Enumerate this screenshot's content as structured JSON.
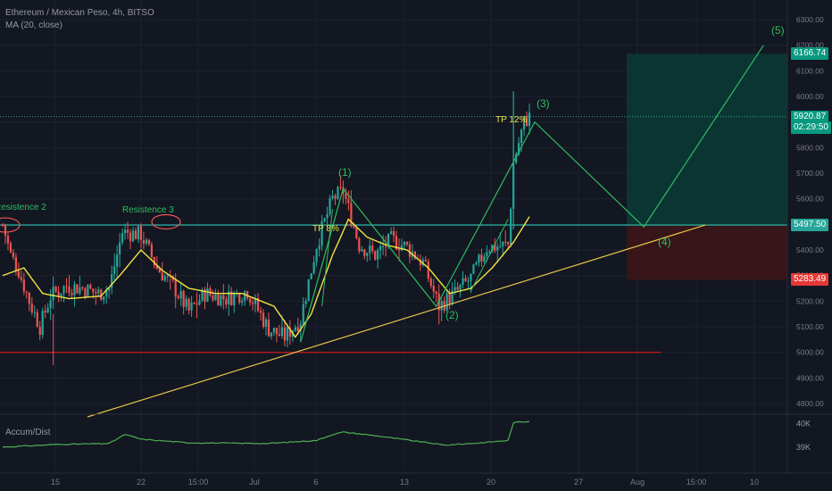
{
  "header": {
    "symbol_line": "Ethereum / Mexican Peso, 4h, BITSO",
    "indicator_line": "MA (20, close)"
  },
  "colors": {
    "background": "#131722",
    "up": "#26a69a",
    "down": "#ef5350",
    "ma": "#f0e442",
    "trend": "#e6c34a",
    "wave": "#2ebd5f",
    "level": "#26a69a",
    "support": "#b71c1c",
    "profit_zone": "#0b3b35",
    "loss_zone": "#3c1518",
    "accum": "#4caf50"
  },
  "price_tags": [
    {
      "name": "target-price-tag",
      "label": "6166.74",
      "value": 6166.74,
      "color": "#089981"
    },
    {
      "name": "last-price-tag",
      "label": "5920.87",
      "value": 5920.87,
      "color": "#089981"
    },
    {
      "name": "countdown-tag",
      "label": "02:29:50",
      "value": 5877,
      "color": "#089981"
    },
    {
      "name": "entry-price-tag",
      "label": "5497.50",
      "value": 5497.5,
      "color": "#26a69a"
    },
    {
      "name": "stop-price-tag",
      "label": "5283.49",
      "value": 5283.49,
      "color": "#e53935"
    }
  ],
  "annotations": {
    "resistance_2": "Resistence 2",
    "resistance_3": "Resistence 3",
    "tp_8": "TP 8%",
    "tp_12": "TP 12%",
    "wave_1": "(1)",
    "wave_2": "(2)",
    "wave_3": "(3)",
    "wave_4": "(4)",
    "wave_5": "(5)"
  },
  "accum_dist": {
    "label": "Accum/Dist",
    "ticks": [
      {
        "label": "40K",
        "value": 40000
      },
      {
        "label": "39K",
        "value": 39000
      }
    ]
  },
  "chart_data": {
    "type": "candlestick",
    "ylim": [
      4700,
      6350
    ],
    "y_ticks": [
      4800,
      4900,
      5000,
      5100,
      5200,
      5300,
      5400,
      5500,
      5600,
      5700,
      5800,
      5900,
      6000,
      6100,
      6200,
      6300
    ],
    "x_ticks": [
      "15",
      "22",
      "15:00",
      "Jul",
      "6",
      "13",
      "20",
      "27",
      "Aug",
      "15:00",
      "10"
    ],
    "series_anchors": [
      {
        "t": 0,
        "v": 5500
      },
      {
        "t": 3,
        "v": 5380
      },
      {
        "t": 6,
        "v": 5320
      },
      {
        "t": 10,
        "v": 5200
      },
      {
        "t": 14,
        "v": 5100
      },
      {
        "t": 18,
        "v": 5220
      },
      {
        "t": 24,
        "v": 5260
      },
      {
        "t": 30,
        "v": 5250
      },
      {
        "t": 36,
        "v": 5230
      },
      {
        "t": 40,
        "v": 5250
      },
      {
        "t": 45,
        "v": 5470
      },
      {
        "t": 52,
        "v": 5460
      },
      {
        "t": 58,
        "v": 5330
      },
      {
        "t": 64,
        "v": 5260
      },
      {
        "t": 70,
        "v": 5160
      },
      {
        "t": 76,
        "v": 5230
      },
      {
        "t": 84,
        "v": 5210
      },
      {
        "t": 92,
        "v": 5240
      },
      {
        "t": 100,
        "v": 5090
      },
      {
        "t": 106,
        "v": 5060
      },
      {
        "t": 112,
        "v": 5130
      },
      {
        "t": 118,
        "v": 5420
      },
      {
        "t": 124,
        "v": 5600
      },
      {
        "t": 128,
        "v": 5630
      },
      {
        "t": 134,
        "v": 5420
      },
      {
        "t": 140,
        "v": 5380
      },
      {
        "t": 146,
        "v": 5440
      },
      {
        "t": 152,
        "v": 5410
      },
      {
        "t": 158,
        "v": 5350
      },
      {
        "t": 164,
        "v": 5180
      },
      {
        "t": 170,
        "v": 5230
      },
      {
        "t": 176,
        "v": 5290
      },
      {
        "t": 182,
        "v": 5410
      },
      {
        "t": 190,
        "v": 5420
      },
      {
        "t": 192,
        "v": 5740
      },
      {
        "t": 196,
        "v": 5900
      },
      {
        "t": 198,
        "v": 5920
      }
    ],
    "candle_count": 199,
    "ma_anchors": [
      {
        "t": 0,
        "v": 5300
      },
      {
        "t": 8,
        "v": 5330
      },
      {
        "t": 15,
        "v": 5230
      },
      {
        "t": 25,
        "v": 5210
      },
      {
        "t": 37,
        "v": 5220
      },
      {
        "t": 44,
        "v": 5300
      },
      {
        "t": 52,
        "v": 5400
      },
      {
        "t": 60,
        "v": 5320
      },
      {
        "t": 70,
        "v": 5250
      },
      {
        "t": 80,
        "v": 5230
      },
      {
        "t": 90,
        "v": 5230
      },
      {
        "t": 102,
        "v": 5180
      },
      {
        "t": 110,
        "v": 5060
      },
      {
        "t": 116,
        "v": 5150
      },
      {
        "t": 124,
        "v": 5380
      },
      {
        "t": 130,
        "v": 5520
      },
      {
        "t": 137,
        "v": 5450
      },
      {
        "t": 144,
        "v": 5420
      },
      {
        "t": 152,
        "v": 5400
      },
      {
        "t": 160,
        "v": 5330
      },
      {
        "t": 168,
        "v": 5230
      },
      {
        "t": 176,
        "v": 5250
      },
      {
        "t": 184,
        "v": 5330
      },
      {
        "t": 192,
        "v": 5430
      },
      {
        "t": 198,
        "v": 5530
      }
    ],
    "accum_anchors": [
      {
        "t": 0,
        "v": 38970
      },
      {
        "t": 20,
        "v": 39080
      },
      {
        "t": 40,
        "v": 39120
      },
      {
        "t": 46,
        "v": 39500
      },
      {
        "t": 52,
        "v": 39300
      },
      {
        "t": 70,
        "v": 39150
      },
      {
        "t": 100,
        "v": 39120
      },
      {
        "t": 118,
        "v": 39250
      },
      {
        "t": 124,
        "v": 39500
      },
      {
        "t": 128,
        "v": 39600
      },
      {
        "t": 140,
        "v": 39450
      },
      {
        "t": 150,
        "v": 39300
      },
      {
        "t": 160,
        "v": 39150
      },
      {
        "t": 166,
        "v": 39050
      },
      {
        "t": 180,
        "v": 39150
      },
      {
        "t": 190,
        "v": 39250
      },
      {
        "t": 192,
        "v": 40000
      },
      {
        "t": 198,
        "v": 40050
      }
    ],
    "resistance_level": 5497.5,
    "support_level": 5000,
    "position": {
      "entry": 5497.5,
      "target": 6166.74,
      "stop": 5283.49
    },
    "wave_points": [
      {
        "t": 112,
        "v": 5040
      },
      {
        "t": 128,
        "v": 5640
      },
      {
        "t": 163,
        "v": 5180
      },
      {
        "t": 200,
        "v": 5900
      },
      {
        "t": 241,
        "v": 5490
      },
      {
        "t": 286,
        "v": 6200
      }
    ]
  }
}
